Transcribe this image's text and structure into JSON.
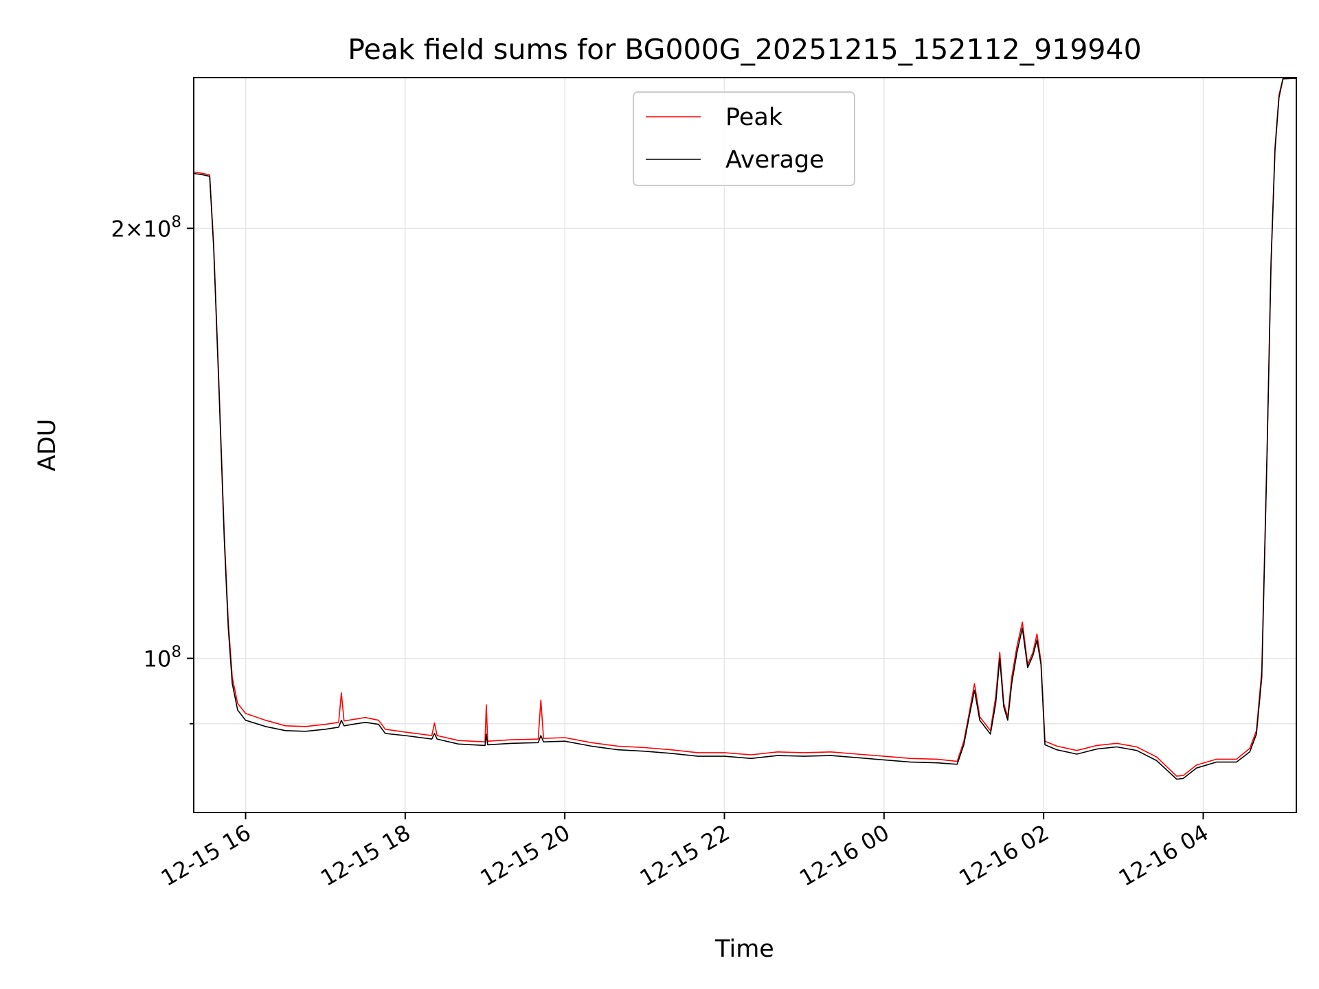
{
  "chart_data": {
    "type": "line",
    "title": "Peak field sums for BG000G_20251215_152112_919940",
    "xlabel": "Time",
    "ylabel": "ADU",
    "yscale": "log",
    "xlim": [
      "2025-12-15T15:21",
      "2025-12-16T05:10"
    ],
    "ylim": [
      78000000,
      255000000
    ],
    "grid": true,
    "legend": "upper-center",
    "x_ticks": [
      {
        "value": "2025-12-15T16:00",
        "label": "12-15 16"
      },
      {
        "value": "2025-12-15T18:00",
        "label": "12-15 18"
      },
      {
        "value": "2025-12-15T20:00",
        "label": "12-15 20"
      },
      {
        "value": "2025-12-15T22:00",
        "label": "12-15 22"
      },
      {
        "value": "2025-12-16T00:00",
        "label": "12-16 00"
      },
      {
        "value": "2025-12-16T02:00",
        "label": "12-16 02"
      },
      {
        "value": "2025-12-16T04:00",
        "label": "12-16 04"
      }
    ],
    "y_ticks_major": [
      {
        "value": 200000000,
        "label_base": "2",
        "label_sup": "8"
      },
      {
        "value": 100000000,
        "label_base": "10",
        "label_sup": "8"
      }
    ],
    "y_ticks_minor": [
      90000000
    ],
    "series": [
      {
        "name": "Peak",
        "color": "#ff0000",
        "points": [
          [
            "2025-12-15T15:21",
            219000000
          ],
          [
            "2025-12-15T15:28",
            218500000
          ],
          [
            "2025-12-15T15:33",
            218000000
          ],
          [
            "2025-12-15T15:36",
            195000000
          ],
          [
            "2025-12-15T15:40",
            155000000
          ],
          [
            "2025-12-15T15:44",
            122000000
          ],
          [
            "2025-12-15T15:47",
            106000000
          ],
          [
            "2025-12-15T15:50",
            97000000
          ],
          [
            "2025-12-15T15:54",
            93000000
          ],
          [
            "2025-12-15T16:00",
            91500000
          ],
          [
            "2025-12-15T16:15",
            90500000
          ],
          [
            "2025-12-15T16:30",
            89700000
          ],
          [
            "2025-12-15T16:45",
            89600000
          ],
          [
            "2025-12-15T17:00",
            89900000
          ],
          [
            "2025-12-15T17:10",
            90200000
          ],
          [
            "2025-12-15T17:12",
            94600000
          ],
          [
            "2025-12-15T17:14",
            90400000
          ],
          [
            "2025-12-15T17:30",
            90900000
          ],
          [
            "2025-12-15T17:40",
            90500000
          ],
          [
            "2025-12-15T17:45",
            89200000
          ],
          [
            "2025-12-15T18:00",
            88800000
          ],
          [
            "2025-12-15T18:20",
            88300000
          ],
          [
            "2025-12-15T18:22",
            90100000
          ],
          [
            "2025-12-15T18:24",
            88300000
          ],
          [
            "2025-12-15T18:40",
            87600000
          ],
          [
            "2025-12-15T19:00",
            87400000
          ],
          [
            "2025-12-15T19:01",
            92800000
          ],
          [
            "2025-12-15T19:02",
            87500000
          ],
          [
            "2025-12-15T19:20",
            87700000
          ],
          [
            "2025-12-15T19:40",
            87800000
          ],
          [
            "2025-12-15T19:42",
            93500000
          ],
          [
            "2025-12-15T19:44",
            87900000
          ],
          [
            "2025-12-15T20:00",
            88000000
          ],
          [
            "2025-12-15T20:20",
            87300000
          ],
          [
            "2025-12-15T20:40",
            86800000
          ],
          [
            "2025-12-15T21:00",
            86600000
          ],
          [
            "2025-12-15T21:20",
            86300000
          ],
          [
            "2025-12-15T21:40",
            85900000
          ],
          [
            "2025-12-15T22:00",
            85900000
          ],
          [
            "2025-12-15T22:20",
            85600000
          ],
          [
            "2025-12-15T22:40",
            86000000
          ],
          [
            "2025-12-15T23:00",
            85900000
          ],
          [
            "2025-12-15T23:20",
            86000000
          ],
          [
            "2025-12-15T23:40",
            85700000
          ],
          [
            "2025-12-16T00:00",
            85400000
          ],
          [
            "2025-12-16T00:20",
            85100000
          ],
          [
            "2025-12-16T00:40",
            85000000
          ],
          [
            "2025-12-16T00:55",
            84700000
          ],
          [
            "2025-12-16T01:00",
            87500000
          ],
          [
            "2025-12-16T01:04",
            91500000
          ],
          [
            "2025-12-16T01:08",
            96000000
          ],
          [
            "2025-12-16T01:12",
            91000000
          ],
          [
            "2025-12-16T01:16",
            90000000
          ],
          [
            "2025-12-16T01:20",
            89000000
          ],
          [
            "2025-12-16T01:24",
            94000000
          ],
          [
            "2025-12-16T01:27",
            101000000
          ],
          [
            "2025-12-16T01:30",
            93000000
          ],
          [
            "2025-12-16T01:33",
            91000000
          ],
          [
            "2025-12-16T01:36",
            97000000
          ],
          [
            "2025-12-16T01:40",
            102000000
          ],
          [
            "2025-12-16T01:44",
            106000000
          ],
          [
            "2025-12-16T01:48",
            99000000
          ],
          [
            "2025-12-16T01:52",
            101000000
          ],
          [
            "2025-12-16T01:55",
            104000000
          ],
          [
            "2025-12-16T01:58",
            99500000
          ],
          [
            "2025-12-16T02:01",
            87500000
          ],
          [
            "2025-12-16T02:10",
            86800000
          ],
          [
            "2025-12-16T02:25",
            86200000
          ],
          [
            "2025-12-16T02:40",
            86900000
          ],
          [
            "2025-12-16T02:55",
            87200000
          ],
          [
            "2025-12-16T03:10",
            86700000
          ],
          [
            "2025-12-16T03:25",
            85300000
          ],
          [
            "2025-12-16T03:40",
            82700000
          ],
          [
            "2025-12-16T03:45",
            82800000
          ],
          [
            "2025-12-16T03:55",
            84200000
          ],
          [
            "2025-12-16T04:10",
            85000000
          ],
          [
            "2025-12-16T04:25",
            85000000
          ],
          [
            "2025-12-16T04:35",
            86500000
          ],
          [
            "2025-12-16T04:40",
            89000000
          ],
          [
            "2025-12-16T04:44",
            98000000
          ],
          [
            "2025-12-16T04:48",
            140000000
          ],
          [
            "2025-12-16T04:51",
            190000000
          ],
          [
            "2025-12-16T04:54",
            228000000
          ],
          [
            "2025-12-16T04:57",
            248000000
          ],
          [
            "2025-12-16T05:00",
            255000000
          ],
          [
            "2025-12-16T05:10",
            255000000
          ]
        ]
      },
      {
        "name": "Average",
        "color": "#000000",
        "points": [
          [
            "2025-12-15T15:21",
            218500000
          ],
          [
            "2025-12-15T15:28",
            218000000
          ],
          [
            "2025-12-15T15:33",
            217500000
          ],
          [
            "2025-12-15T15:36",
            194000000
          ],
          [
            "2025-12-15T15:40",
            154000000
          ],
          [
            "2025-12-15T15:44",
            121000000
          ],
          [
            "2025-12-15T15:47",
            105000000
          ],
          [
            "2025-12-15T15:50",
            96000000
          ],
          [
            "2025-12-15T15:54",
            92000000
          ],
          [
            "2025-12-15T16:00",
            90500000
          ],
          [
            "2025-12-15T16:15",
            89600000
          ],
          [
            "2025-12-15T16:30",
            89000000
          ],
          [
            "2025-12-15T16:45",
            88900000
          ],
          [
            "2025-12-15T17:00",
            89200000
          ],
          [
            "2025-12-15T17:10",
            89500000
          ],
          [
            "2025-12-15T17:12",
            90500000
          ],
          [
            "2025-12-15T17:14",
            89700000
          ],
          [
            "2025-12-15T17:30",
            90200000
          ],
          [
            "2025-12-15T17:40",
            89900000
          ],
          [
            "2025-12-15T17:45",
            88600000
          ],
          [
            "2025-12-15T18:00",
            88300000
          ],
          [
            "2025-12-15T18:20",
            87800000
          ],
          [
            "2025-12-15T18:22",
            88600000
          ],
          [
            "2025-12-15T18:24",
            87800000
          ],
          [
            "2025-12-15T18:40",
            87100000
          ],
          [
            "2025-12-15T19:00",
            86900000
          ],
          [
            "2025-12-15T19:01",
            88500000
          ],
          [
            "2025-12-15T19:02",
            87000000
          ],
          [
            "2025-12-15T19:20",
            87200000
          ],
          [
            "2025-12-15T19:40",
            87300000
          ],
          [
            "2025-12-15T19:42",
            88300000
          ],
          [
            "2025-12-15T19:44",
            87400000
          ],
          [
            "2025-12-15T20:00",
            87500000
          ],
          [
            "2025-12-15T20:20",
            86800000
          ],
          [
            "2025-12-15T20:40",
            86300000
          ],
          [
            "2025-12-15T21:00",
            86100000
          ],
          [
            "2025-12-15T21:20",
            85800000
          ],
          [
            "2025-12-15T21:40",
            85400000
          ],
          [
            "2025-12-15T22:00",
            85400000
          ],
          [
            "2025-12-15T22:20",
            85100000
          ],
          [
            "2025-12-15T22:40",
            85500000
          ],
          [
            "2025-12-15T23:00",
            85400000
          ],
          [
            "2025-12-15T23:20",
            85500000
          ],
          [
            "2025-12-15T23:40",
            85200000
          ],
          [
            "2025-12-16T00:00",
            84900000
          ],
          [
            "2025-12-16T00:20",
            84600000
          ],
          [
            "2025-12-16T00:40",
            84500000
          ],
          [
            "2025-12-16T00:55",
            84300000
          ],
          [
            "2025-12-16T01:00",
            87000000
          ],
          [
            "2025-12-16T01:04",
            91000000
          ],
          [
            "2025-12-16T01:08",
            95000000
          ],
          [
            "2025-12-16T01:12",
            90500000
          ],
          [
            "2025-12-16T01:16",
            89500000
          ],
          [
            "2025-12-16T01:20",
            88500000
          ],
          [
            "2025-12-16T01:24",
            93000000
          ],
          [
            "2025-12-16T01:27",
            100000000
          ],
          [
            "2025-12-16T01:30",
            92500000
          ],
          [
            "2025-12-16T01:33",
            90500000
          ],
          [
            "2025-12-16T01:36",
            96000000
          ],
          [
            "2025-12-16T01:40",
            101000000
          ],
          [
            "2025-12-16T01:44",
            105000000
          ],
          [
            "2025-12-16T01:48",
            98500000
          ],
          [
            "2025-12-16T01:52",
            100500000
          ],
          [
            "2025-12-16T01:55",
            103000000
          ],
          [
            "2025-12-16T01:58",
            99000000
          ],
          [
            "2025-12-16T02:01",
            87000000
          ],
          [
            "2025-12-16T02:10",
            86300000
          ],
          [
            "2025-12-16T02:25",
            85700000
          ],
          [
            "2025-12-16T02:40",
            86400000
          ],
          [
            "2025-12-16T02:55",
            86700000
          ],
          [
            "2025-12-16T03:10",
            86200000
          ],
          [
            "2025-12-16T03:25",
            84800000
          ],
          [
            "2025-12-16T03:40",
            82300000
          ],
          [
            "2025-12-16T03:45",
            82400000
          ],
          [
            "2025-12-16T03:55",
            83800000
          ],
          [
            "2025-12-16T04:10",
            84600000
          ],
          [
            "2025-12-16T04:25",
            84600000
          ],
          [
            "2025-12-16T04:35",
            86000000
          ],
          [
            "2025-12-16T04:40",
            88500000
          ],
          [
            "2025-12-16T04:44",
            97000000
          ],
          [
            "2025-12-16T04:48",
            139000000
          ],
          [
            "2025-12-16T04:51",
            189000000
          ],
          [
            "2025-12-16T04:54",
            227000000
          ],
          [
            "2025-12-16T04:57",
            247000000
          ],
          [
            "2025-12-16T05:00",
            254500000
          ],
          [
            "2025-12-16T05:10",
            255000000
          ]
        ]
      }
    ]
  }
}
